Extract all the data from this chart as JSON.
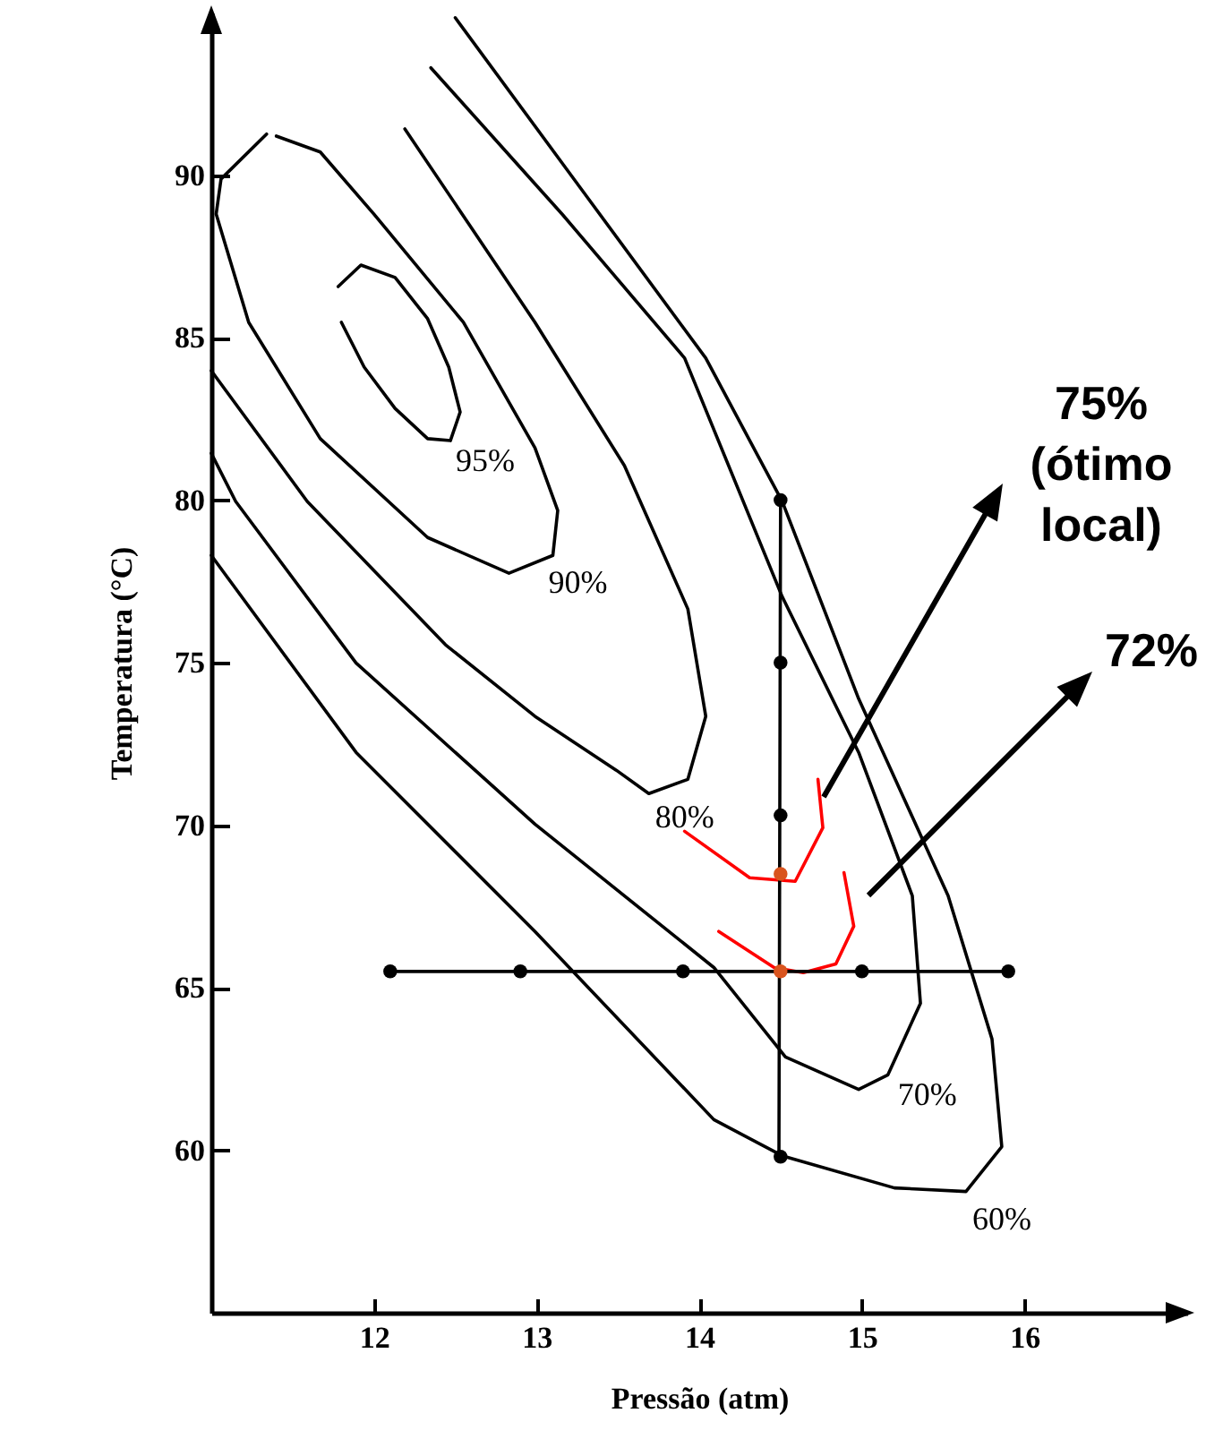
{
  "chart_data": {
    "type": "line",
    "xlabel": "Pressão (atm)",
    "ylabel": "Temperatura (°C)",
    "xlim": [
      11,
      17
    ],
    "ylim": [
      55,
      95
    ],
    "xticks": [
      12,
      13,
      14,
      15,
      16
    ],
    "yticks": [
      60,
      65,
      70,
      75,
      80,
      85,
      90
    ],
    "series": [
      {
        "name": "95%",
        "color": "#000000",
        "x": [
          11.78,
          11.92,
          12.13,
          12.33,
          12.46,
          12.53,
          12.47,
          12.33,
          12.13,
          11.94,
          11.8
        ],
        "values": [
          86.57,
          87.23,
          86.85,
          85.58,
          84.09,
          82.71,
          81.83,
          81.89,
          82.82,
          84.09,
          85.47
        ]
      },
      {
        "name": "90%",
        "color": "#000000",
        "x": [
          11.34,
          11.06,
          11.03,
          11.23,
          11.67,
          12.33,
          12.83,
          13.1,
          13.13,
          12.99,
          12.55,
          12.0,
          11.67,
          11.4
        ],
        "values": [
          91.26,
          89.88,
          88.8,
          85.47,
          81.89,
          78.85,
          77.75,
          78.3,
          79.68,
          81.61,
          85.47,
          88.8,
          90.71,
          91.2
        ]
      },
      {
        "name": "80%",
        "color": "#000000",
        "x": [
          11.0,
          11.59,
          12.44,
          12.99,
          13.49,
          13.69,
          13.93,
          14.04,
          13.93,
          13.54,
          12.99,
          12.19
        ],
        "values": [
          83.98,
          79.96,
          75.55,
          73.35,
          71.69,
          70.97,
          71.41,
          73.35,
          76.65,
          81.06,
          85.47,
          91.42
        ]
      },
      {
        "name": "70%",
        "color": "#000000",
        "x": [
          11.0,
          11.15,
          11.89,
          12.99,
          14.09,
          14.53,
          14.98,
          15.16,
          15.36,
          15.31,
          14.98,
          14.51,
          13.91,
          13.16,
          12.35
        ],
        "values": [
          81.44,
          79.96,
          74.99,
          70.03,
          65.62,
          62.87,
          61.87,
          62.32,
          64.52,
          67.83,
          72.24,
          77.03,
          84.37,
          88.78,
          93.3
        ]
      },
      {
        "name": "60%",
        "color": "#000000",
        "x": [
          11.0,
          11.89,
          12.99,
          14.09,
          14.51,
          15.2,
          15.64,
          15.86,
          15.8,
          15.53,
          14.98,
          14.51,
          14.04,
          13.27,
          12.5
        ],
        "values": [
          78.3,
          72.24,
          66.73,
          60.94,
          59.83,
          58.84,
          58.73,
          60.11,
          63.42,
          67.83,
          73.89,
          79.96,
          84.37,
          89.6,
          94.84
        ]
      },
      {
        "color": "#ff0000",
        "x": [
          13.91,
          14.31,
          14.59,
          14.76,
          14.73
        ],
        "values": [
          69.81,
          68.38,
          68.27,
          69.92,
          71.41
        ]
      },
      {
        "color": "#ff0000",
        "x": [
          14.12,
          14.46,
          14.64,
          14.84,
          14.95,
          14.89
        ],
        "values": [
          66.73,
          65.62,
          65.46,
          65.73,
          66.89,
          68.54
        ]
      },
      {
        "color": "#000000",
        "x": [
          12.1,
          15.9
        ],
        "values": [
          65.5,
          65.5
        ]
      },
      {
        "color": "#000000",
        "x": [
          14.49,
          14.5
        ],
        "values": [
          59.8,
          80
        ]
      },
      {
        "type": "scatter",
        "marker": "circle",
        "color": "#000000",
        "x": [
          12.1,
          12.9,
          13.9,
          15,
          15.9,
          14.5,
          14.5,
          14.5,
          14.5
        ],
        "values": [
          65.5,
          65.5,
          65.5,
          65.5,
          65.5,
          80,
          75,
          70.3,
          59.8
        ]
      },
      {
        "type": "scatter",
        "marker": "circle",
        "color": "#d9541e",
        "x": [
          14.5,
          14.5
        ],
        "values": [
          68.5,
          65.5
        ]
      }
    ],
    "annotations": [
      "75% (ótimo local)",
      "72%"
    ]
  }
}
